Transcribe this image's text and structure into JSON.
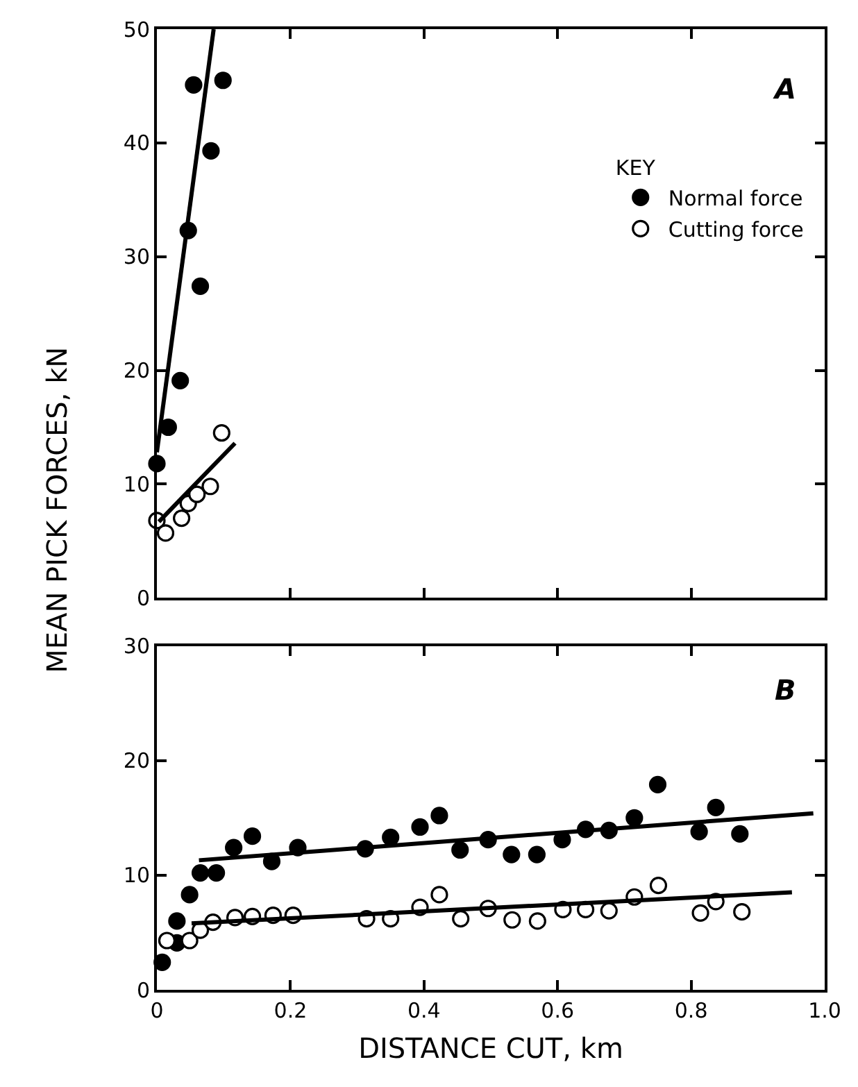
{
  "chart_data": [
    {
      "type": "scatter",
      "ylabel": "MEAN PICK FORCES, kN",
      "legend_title": "KEY",
      "legend": "right",
      "marker": "circle",
      "tick_labels": "y",
      "xlim": [
        0,
        1.0
      ],
      "xticks": [
        0,
        0.2,
        0.4,
        0.6,
        0.8,
        1.0
      ],
      "ylim": [
        0,
        50
      ],
      "yticks": [
        0,
        10,
        20,
        30,
        40,
        50
      ],
      "annotations": [
        "A"
      ],
      "series": [
        {
          "name": "Normal force",
          "color": "#000000",
          "x": [
            0.0,
            0.017,
            0.035,
            0.047,
            0.055,
            0.065,
            0.081,
            0.099
          ],
          "values": [
            11.8,
            15,
            19.1,
            32.3,
            45.1,
            27.4,
            39.3,
            45.5
          ]
        },
        {
          "name": "Cutting force",
          "color": "#ffffff",
          "x": [
            0.0,
            0.013,
            0.037,
            0.047,
            0.06,
            0.08,
            0.097
          ],
          "values": [
            6.8,
            5.7,
            7.0,
            8.3,
            9.1,
            9.8,
            14.5
          ]
        },
        {
          "type": "line",
          "color": "#000000",
          "marker": "none",
          "x": [
            0.0,
            0.085
          ],
          "values": [
            12.8,
            50
          ]
        },
        {
          "type": "line",
          "color": "#000000",
          "marker": "none",
          "x": [
            0.003,
            0.117
          ],
          "values": [
            6.7,
            13.6
          ]
        }
      ]
    },
    {
      "type": "scatter",
      "xlabel": "DISTANCE CUT, km",
      "marker": "circle",
      "xlim": [
        0,
        1.0
      ],
      "xticks": [
        0,
        0.2,
        0.4,
        0.6,
        0.8,
        {
          "value": 1.0,
          "label": "1.0"
        }
      ],
      "ylim": [
        0,
        30
      ],
      "yticks": [
        0,
        10,
        20,
        30
      ],
      "annotations": [
        "B"
      ],
      "series": [
        {
          "color": "#000000",
          "x": [
            0.008,
            0.03,
            0.03,
            0.049,
            0.065,
            0.089,
            0.115,
            0.143,
            0.172,
            0.211,
            0.312,
            0.35,
            0.394,
            0.423,
            0.454,
            0.496,
            0.531,
            0.569,
            0.607,
            0.642,
            0.677,
            0.715,
            0.75,
            0.812,
            0.837,
            0.873
          ],
          "values": [
            2.4,
            4.1,
            6.0,
            8.3,
            10.2,
            10.2,
            12.4,
            13.4,
            11.2,
            12.4,
            12.3,
            13.3,
            14.2,
            15.2,
            12.2,
            13.1,
            11.8,
            11.8,
            13.1,
            14.0,
            13.9,
            15.0,
            17.9,
            13.8,
            15.9,
            13.6
          ]
        },
        {
          "color": "#ffffff",
          "x": [
            0.015,
            0.049,
            0.065,
            0.084,
            0.117,
            0.143,
            0.174,
            0.204,
            0.314,
            0.35,
            0.394,
            0.423,
            0.455,
            0.496,
            0.532,
            0.57,
            0.608,
            0.642,
            0.677,
            0.715,
            0.751,
            0.814,
            0.837,
            0.876
          ],
          "values": [
            4.3,
            4.3,
            5.2,
            5.9,
            6.3,
            6.4,
            6.5,
            6.5,
            6.2,
            6.2,
            7.2,
            8.3,
            6.2,
            7.1,
            6.1,
            6.0,
            7.0,
            7.0,
            6.9,
            8.1,
            9.1,
            6.7,
            7.7,
            6.8
          ]
        },
        {
          "type": "line",
          "color": "#000000",
          "marker": "none",
          "x": [
            0.063,
            0.983
          ],
          "values": [
            11.3,
            15.4
          ]
        },
        {
          "type": "line",
          "color": "#000000",
          "marker": "none",
          "x": [
            0.052,
            0.951
          ],
          "values": [
            5.8,
            8.5
          ]
        }
      ]
    }
  ]
}
